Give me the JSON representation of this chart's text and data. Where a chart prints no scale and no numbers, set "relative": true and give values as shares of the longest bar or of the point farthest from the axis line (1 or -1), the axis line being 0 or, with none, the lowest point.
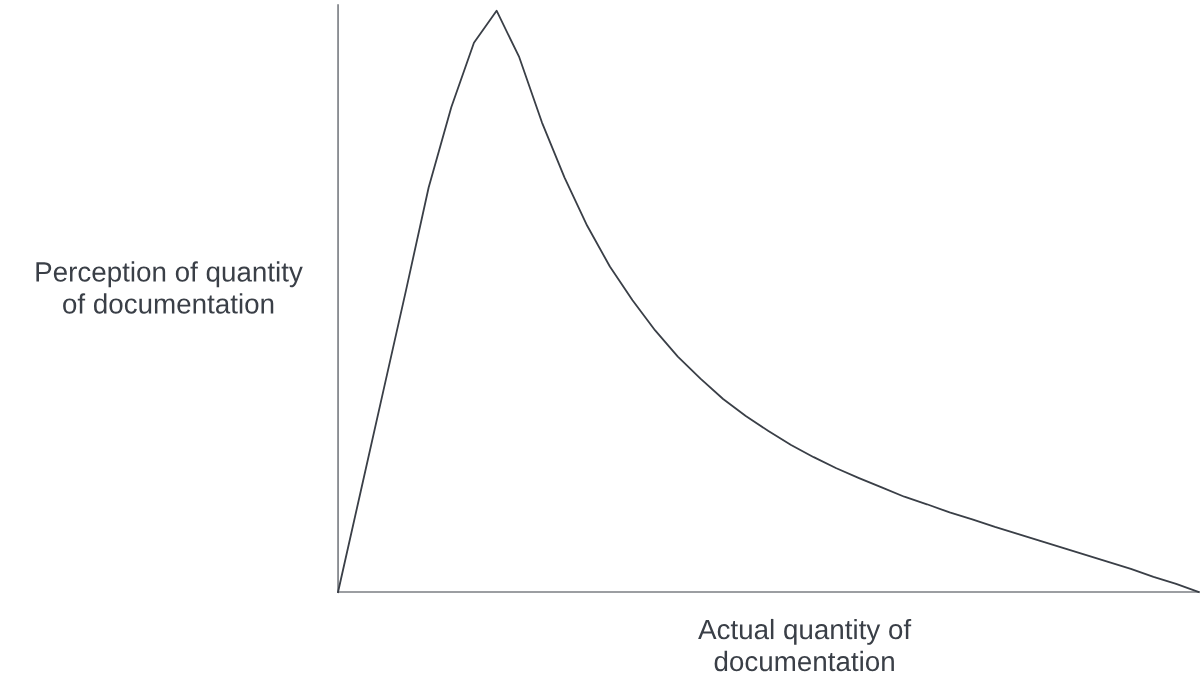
{
  "chart_data": {
    "type": "line",
    "relative": true,
    "xlabel": "Actual quantity of\ndocumentation",
    "ylabel": "Perception of quantity\nof documentation",
    "categories": [
      null,
      null,
      null,
      null,
      null,
      null,
      null,
      null,
      null,
      null,
      null,
      null,
      null,
      null,
      null,
      null,
      null,
      null,
      null,
      null,
      null,
      null,
      null,
      null,
      null,
      null,
      null,
      null,
      null,
      null,
      null,
      null,
      null,
      null,
      null,
      null,
      null,
      null,
      null
    ],
    "series": [
      {
        "color": "#3a3f47",
        "values": [
          0,
          0.173,
          0.346,
          0.519,
          0.696,
          0.834,
          0.945,
          1.0,
          0.92,
          0.808,
          0.713,
          0.63,
          0.56,
          0.502,
          0.45,
          0.405,
          0.367,
          0.332,
          0.303,
          0.277,
          0.253,
          0.232,
          0.213,
          0.196,
          0.18,
          0.164,
          0.151,
          0.137,
          0.125,
          0.112,
          0.1,
          0.088,
          0.076,
          0.064,
          0.052,
          0.04,
          0.026,
          0.014,
          0
        ]
      }
    ],
    "legend": false,
    "line_style": "solid",
    "marker": "none"
  }
}
